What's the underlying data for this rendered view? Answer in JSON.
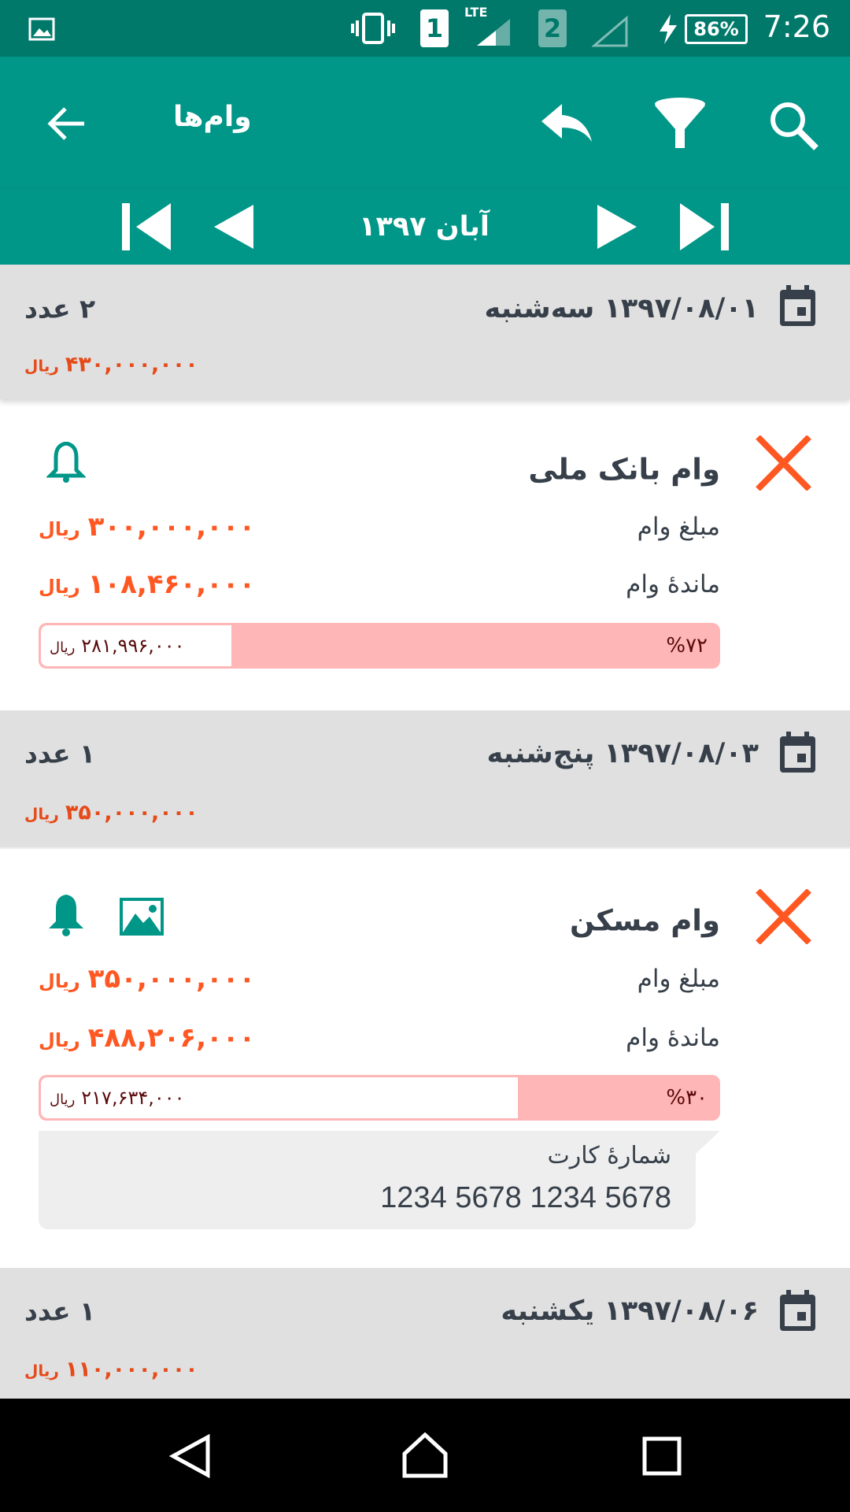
{
  "status_bar": {
    "time": "7:26",
    "battery": "86%",
    "network": "LTE",
    "sim1": "1",
    "sim2": "2",
    "icons": [
      "image-icon",
      "vibrate-icon",
      "sim1-icon",
      "signal-icon",
      "sim2-icon",
      "signal-empty-icon",
      "charging-icon",
      "battery-icon"
    ]
  },
  "toolbar": {
    "title": "وام‌ها",
    "icons": [
      "back-arrow-icon",
      "reply-icon",
      "filter-icon",
      "search-icon"
    ]
  },
  "month_nav": {
    "label": "آبان ۱۳۹۷",
    "icons": [
      "first-icon",
      "previous-icon",
      "next-icon",
      "last-icon"
    ]
  },
  "currency": "ریال",
  "groups": [
    {
      "date": "۱۳۹۷/۰۸/۰۱ سه‌شنبه",
      "count": "۲ عدد",
      "total": "۴۳۰,۰۰۰,۰۰۰",
      "loans": [
        {
          "title": "وام بانک ملی",
          "amount_label": "مبلغ وام",
          "amount": "۳۰۰,۰۰۰,۰۰۰",
          "remain_label": "ماندهٔ وام",
          "remain": "۱۰۸,۴۶۰,۰۰۰",
          "bar_amount": "۲۸۱,۹۹۶,۰۰۰",
          "percent": "%۷۲",
          "progress": 72,
          "bell": "outline"
        }
      ]
    },
    {
      "date": "۱۳۹۷/۰۸/۰۳ پنج‌شنبه",
      "count": "۱ عدد",
      "total": "۳۵۰,۰۰۰,۰۰۰",
      "loans": [
        {
          "title": "وام مسکن",
          "amount_label": "مبلغ وام",
          "amount": "۳۵۰,۰۰۰,۰۰۰",
          "remain_label": "ماندهٔ وام",
          "remain": "۴۸۸,۲۰۶,۰۰۰",
          "bar_amount": "۲۱۷,۶۳۴,۰۰۰",
          "percent": "%۳۰",
          "progress": 30,
          "bell": "filled",
          "card_label": "شمارهٔ کارت",
          "card_number": "1234 5678 1234 5678"
        }
      ]
    },
    {
      "date": "۱۳۹۷/۰۸/۰۶ یکشنبه",
      "count": "۱ عدد",
      "total": "۱۱۰,۰۰۰,۰۰۰"
    }
  ],
  "colors": {
    "primary": "#009688",
    "status": "#00796b",
    "accent": "#ff5722",
    "group_amount": "#e64a19",
    "bar": "#ffb6b6",
    "header_bg": "#e0e0e0"
  }
}
